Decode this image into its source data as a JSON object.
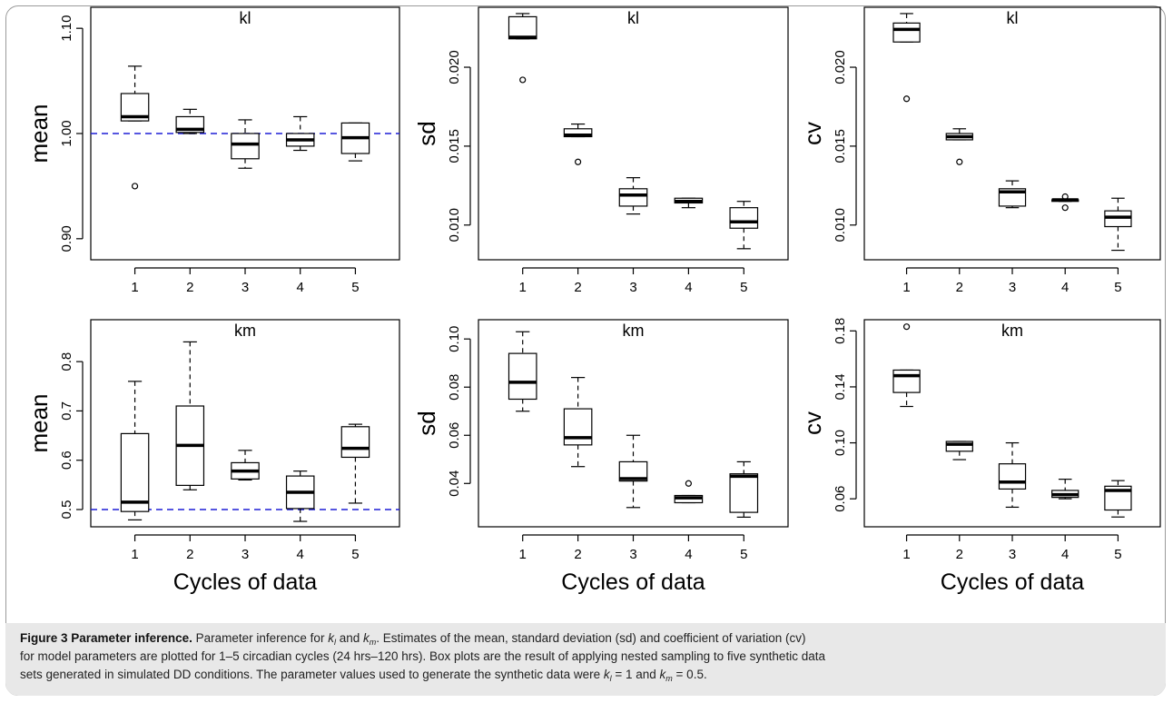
{
  "chart_data": [
    {
      "type": "box",
      "title": "kl",
      "ylabel": "mean",
      "xlabel": "",
      "categories": [
        "1",
        "2",
        "3",
        "4",
        "5"
      ],
      "ylim": [
        0.88,
        1.12
      ],
      "yticks": [
        0.9,
        1.0,
        1.1
      ],
      "ytick_labels": [
        "0.90",
        "1.00",
        "1.10"
      ],
      "reference_line": 1.0,
      "boxes": [
        {
          "min": 1.012,
          "q1": 1.012,
          "median": 1.016,
          "q3": 1.038,
          "max": 1.064,
          "outliers": [
            0.95
          ]
        },
        {
          "min": 1.0,
          "q1": 1.001,
          "median": 1.004,
          "q3": 1.016,
          "max": 1.023,
          "outliers": []
        },
        {
          "min": 0.967,
          "q1": 0.976,
          "median": 0.99,
          "q3": 1.0,
          "max": 1.013,
          "outliers": []
        },
        {
          "min": 0.984,
          "q1": 0.988,
          "median": 0.994,
          "q3": 1.0,
          "max": 1.016,
          "outliers": []
        },
        {
          "min": 0.974,
          "q1": 0.981,
          "median": 0.996,
          "q3": 1.01,
          "max": 1.01,
          "outliers": []
        }
      ]
    },
    {
      "type": "box",
      "title": "kl",
      "ylabel": "sd",
      "xlabel": "",
      "categories": [
        "1",
        "2",
        "3",
        "4",
        "5"
      ],
      "ylim": [
        0.0078,
        0.0238
      ],
      "yticks": [
        0.01,
        0.015,
        0.02
      ],
      "ytick_labels": [
        "0.010",
        "0.015",
        "0.020"
      ],
      "boxes": [
        {
          "min": 0.0218,
          "q1": 0.0218,
          "median": 0.0219,
          "q3": 0.0232,
          "max": 0.0234,
          "outliers": [
            0.0192
          ]
        },
        {
          "min": 0.0156,
          "q1": 0.0156,
          "median": 0.0157,
          "q3": 0.0161,
          "max": 0.0164,
          "outliers": [
            0.014
          ]
        },
        {
          "min": 0.0107,
          "q1": 0.0112,
          "median": 0.0119,
          "q3": 0.0123,
          "max": 0.013,
          "outliers": []
        },
        {
          "min": 0.0111,
          "q1": 0.0114,
          "median": 0.0115,
          "q3": 0.0117,
          "max": 0.0117,
          "outliers": []
        },
        {
          "min": 0.0085,
          "q1": 0.0098,
          "median": 0.0102,
          "q3": 0.0111,
          "max": 0.0115,
          "outliers": []
        }
      ]
    },
    {
      "type": "box",
      "title": "kl",
      "ylabel": "cv",
      "xlabel": "",
      "categories": [
        "1",
        "2",
        "3",
        "4",
        "5"
      ],
      "ylim": [
        0.0078,
        0.0238
      ],
      "yticks": [
        0.01,
        0.015,
        0.02
      ],
      "ytick_labels": [
        "0.010",
        "0.015",
        "0.020"
      ],
      "boxes": [
        {
          "min": 0.0216,
          "q1": 0.0216,
          "median": 0.0224,
          "q3": 0.0228,
          "max": 0.0234,
          "outliers": [
            0.018
          ]
        },
        {
          "min": 0.0154,
          "q1": 0.0154,
          "median": 0.0156,
          "q3": 0.0158,
          "max": 0.0161,
          "outliers": [
            0.014
          ]
        },
        {
          "min": 0.0111,
          "q1": 0.0112,
          "median": 0.0121,
          "q3": 0.0123,
          "max": 0.0128,
          "outliers": []
        },
        {
          "min": 0.0115,
          "q1": 0.0115,
          "median": 0.0116,
          "q3": 0.0116,
          "max": 0.0116,
          "outliers": [
            0.0111,
            0.0118
          ]
        },
        {
          "min": 0.0084,
          "q1": 0.0099,
          "median": 0.0105,
          "q3": 0.0109,
          "max": 0.0117,
          "outliers": []
        }
      ]
    },
    {
      "type": "box",
      "title": "km",
      "ylabel": "mean",
      "xlabel": "Cycles of data",
      "categories": [
        "1",
        "2",
        "3",
        "4",
        "5"
      ],
      "ylim": [
        0.465,
        0.885
      ],
      "yticks": [
        0.5,
        0.6,
        0.7,
        0.8
      ],
      "ytick_labels": [
        "0.5",
        "0.6",
        "0.7",
        "0.8"
      ],
      "reference_line": 0.5,
      "boxes": [
        {
          "min": 0.479,
          "q1": 0.496,
          "median": 0.515,
          "q3": 0.654,
          "max": 0.76,
          "outliers": []
        },
        {
          "min": 0.54,
          "q1": 0.549,
          "median": 0.63,
          "q3": 0.71,
          "max": 0.84,
          "outliers": []
        },
        {
          "min": 0.56,
          "q1": 0.562,
          "median": 0.578,
          "q3": 0.595,
          "max": 0.62,
          "outliers": []
        },
        {
          "min": 0.476,
          "q1": 0.502,
          "median": 0.535,
          "q3": 0.568,
          "max": 0.578,
          "outliers": []
        },
        {
          "min": 0.513,
          "q1": 0.606,
          "median": 0.624,
          "q3": 0.668,
          "max": 0.673,
          "outliers": []
        }
      ]
    },
    {
      "type": "box",
      "title": "km",
      "ylabel": "sd",
      "xlabel": "Cycles of data",
      "categories": [
        "1",
        "2",
        "3",
        "4",
        "5"
      ],
      "ylim": [
        0.022,
        0.108
      ],
      "yticks": [
        0.04,
        0.06,
        0.08,
        0.1
      ],
      "ytick_labels": [
        "0.04",
        "0.06",
        "0.08",
        "0.10"
      ],
      "boxes": [
        {
          "min": 0.07,
          "q1": 0.075,
          "median": 0.082,
          "q3": 0.094,
          "max": 0.103,
          "outliers": []
        },
        {
          "min": 0.047,
          "q1": 0.056,
          "median": 0.059,
          "q3": 0.071,
          "max": 0.084,
          "outliers": []
        },
        {
          "min": 0.03,
          "q1": 0.041,
          "median": 0.042,
          "q3": 0.049,
          "max": 0.06,
          "outliers": []
        },
        {
          "min": 0.032,
          "q1": 0.032,
          "median": 0.034,
          "q3": 0.035,
          "max": 0.035,
          "outliers": [
            0.04
          ]
        },
        {
          "min": 0.026,
          "q1": 0.028,
          "median": 0.043,
          "q3": 0.044,
          "max": 0.049,
          "outliers": []
        }
      ]
    },
    {
      "type": "box",
      "title": "km",
      "ylabel": "cv",
      "xlabel": "Cycles of data",
      "categories": [
        "1",
        "2",
        "3",
        "4",
        "5"
      ],
      "ylim": [
        0.04,
        0.188
      ],
      "yticks": [
        0.06,
        0.1,
        0.14,
        0.18
      ],
      "ytick_labels": [
        "0.06",
        "0.10",
        "0.14",
        "0.18"
      ],
      "boxes": [
        {
          "min": 0.126,
          "q1": 0.136,
          "median": 0.148,
          "q3": 0.152,
          "max": 0.152,
          "outliers": [
            0.183
          ]
        },
        {
          "min": 0.088,
          "q1": 0.094,
          "median": 0.099,
          "q3": 0.101,
          "max": 0.101,
          "outliers": []
        },
        {
          "min": 0.054,
          "q1": 0.067,
          "median": 0.072,
          "q3": 0.085,
          "max": 0.1,
          "outliers": []
        },
        {
          "min": 0.06,
          "q1": 0.061,
          "median": 0.063,
          "q3": 0.066,
          "max": 0.074,
          "outliers": []
        },
        {
          "min": 0.047,
          "q1": 0.052,
          "median": 0.066,
          "q3": 0.069,
          "max": 0.073,
          "outliers": []
        }
      ]
    }
  ],
  "caption": {
    "label": "Figure 3",
    "title": "Parameter inference.",
    "line1_part1": "Parameter inference for ",
    "kl_symbol": "k",
    "kl_sub": "l",
    "line1_part2": " and ",
    "km_symbol": "k",
    "km_sub": "m",
    "line1_part3": ". Estimates of the mean, standard deviation (sd) and coefficient of variation (cv)",
    "line2": "for model parameters are plotted for 1–5 circadian cycles (24 hrs–120 hrs). Box plots are the result of applying nested sampling to five synthetic data",
    "line3_part1": "sets generated in simulated DD conditions. The parameter values used to generate the synthetic data were ",
    "eq1": " = 1 and ",
    "eq2": " = 0.5."
  }
}
